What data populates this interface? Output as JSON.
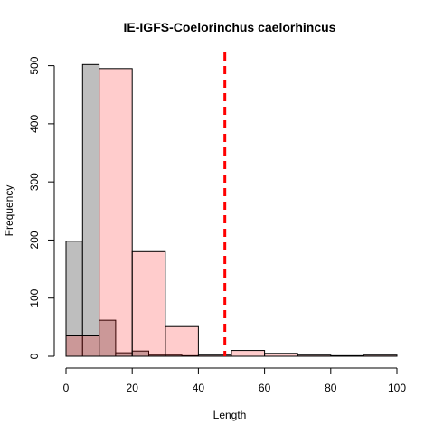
{
  "chart_data": {
    "type": "bar",
    "title": "IE-IGFS-Coelorinchus caelorhincus",
    "xlabel": "Length",
    "ylabel": "Frequency",
    "xlim": [
      0,
      100
    ],
    "ylim": [
      0,
      500
    ],
    "x_ticks": [
      0,
      20,
      40,
      60,
      80,
      100
    ],
    "y_ticks": [
      0,
      100,
      200,
      300,
      400,
      500
    ],
    "series": [
      {
        "fill": "#bebebe",
        "bins": [
          {
            "x0": 0,
            "x1": 5,
            "count": 198
          },
          {
            "x0": 5,
            "x1": 10,
            "count": 502
          },
          {
            "x0": 10,
            "x1": 15,
            "count": 62
          },
          {
            "x0": 15,
            "x1": 20,
            "count": 6
          },
          {
            "x0": 20,
            "x1": 25,
            "count": 9
          },
          {
            "x0": 25,
            "x1": 30,
            "count": 2
          },
          {
            "x0": 30,
            "x1": 35,
            "count": 2
          },
          {
            "x0": 35,
            "x1": 40,
            "count": 1
          }
        ]
      },
      {
        "fill": "#ff0000",
        "fill_opacity": 0.2,
        "bins": [
          {
            "x0": 0,
            "x1": 10,
            "count": 35
          },
          {
            "x0": 10,
            "x1": 20,
            "count": 495
          },
          {
            "x0": 20,
            "x1": 30,
            "count": 180
          },
          {
            "x0": 30,
            "x1": 40,
            "count": 51
          },
          {
            "x0": 40,
            "x1": 50,
            "count": 2
          },
          {
            "x0": 50,
            "x1": 60,
            "count": 10
          },
          {
            "x0": 60,
            "x1": 70,
            "count": 5
          },
          {
            "x0": 70,
            "x1": 80,
            "count": 2
          },
          {
            "x0": 80,
            "x1": 90,
            "count": 1
          },
          {
            "x0": 90,
            "x1": 100,
            "count": 2
          }
        ]
      }
    ],
    "reference_line": {
      "x": 48,
      "color": "#ff0000",
      "style": "dashed"
    }
  }
}
